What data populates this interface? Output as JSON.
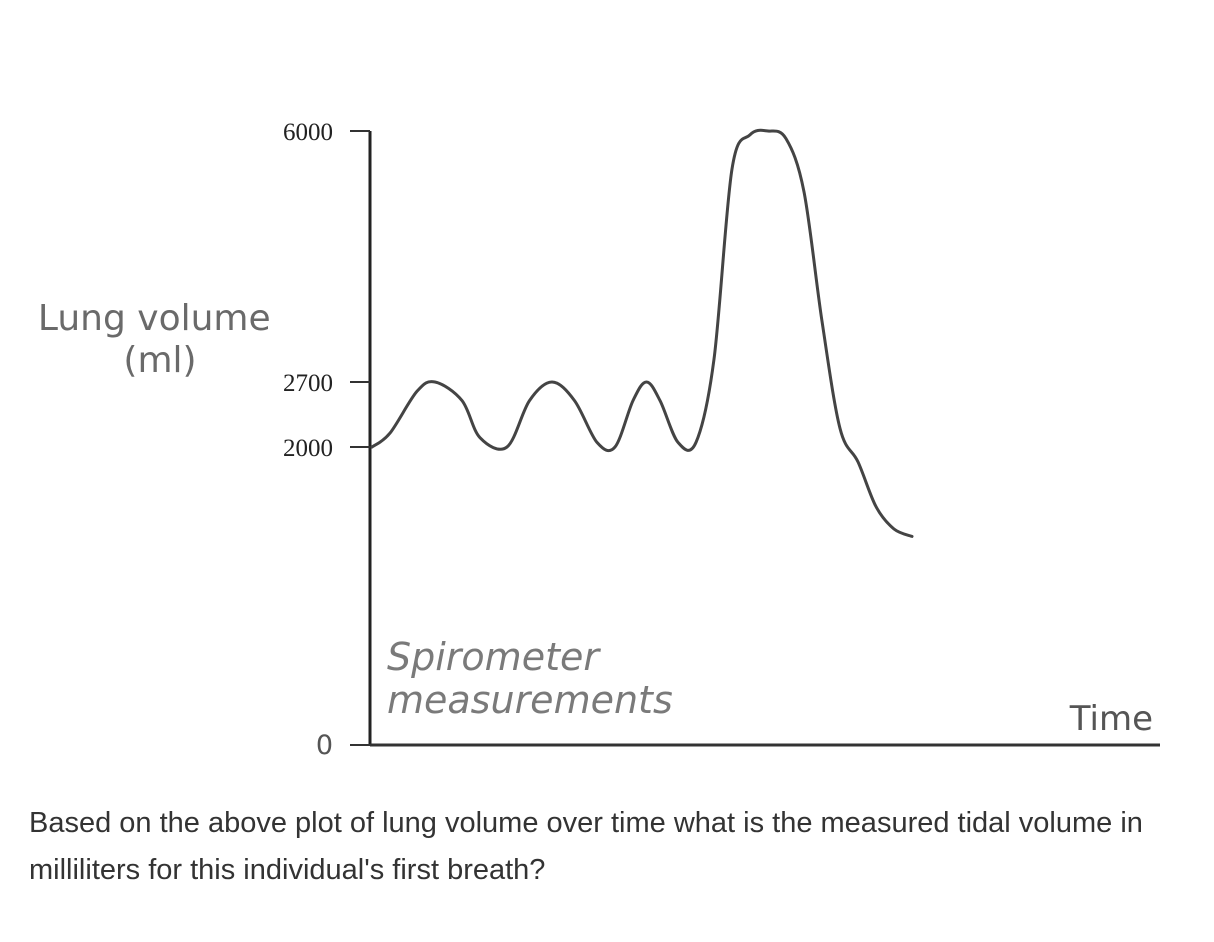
{
  "chart_data": {
    "type": "line",
    "ylabel_lines": [
      "Lung volume",
      "(ml)"
    ],
    "xlabel": "Time",
    "annotation_lines": [
      "Spirometer",
      "measurements"
    ],
    "yticks": [
      {
        "value": 6000,
        "label": "6000"
      },
      {
        "value": 2700,
        "label": "2700"
      },
      {
        "value": 2000,
        "label": "2000"
      },
      {
        "value": 0,
        "label": "0"
      }
    ],
    "ylim": [
      0,
      6000
    ],
    "xlim": [
      0,
      100
    ],
    "grid": false,
    "series": [
      {
        "x": [
          0,
          2,
          5,
          7,
          10,
          12,
          15,
          17.5,
          20,
          22.5,
          25,
          27,
          29,
          30.5,
          32,
          34,
          36,
          38,
          40,
          42,
          44,
          46,
          48,
          50,
          52,
          54,
          56,
          58,
          60
        ],
        "y": [
          2000,
          2150,
          2600,
          2700,
          2500,
          2100,
          2000,
          2500,
          2700,
          2500,
          2050,
          2000,
          2500,
          2700,
          2500,
          2050,
          2050,
          3000,
          5500,
          5950,
          6000,
          5900,
          5200,
          3500,
          2200,
          1900,
          1600,
          1450,
          1400
        ]
      }
    ]
  },
  "question": {
    "text": "Based on the above plot of lung volume over time what is the measured tidal volume in milliliters for this individual's first breath?"
  }
}
